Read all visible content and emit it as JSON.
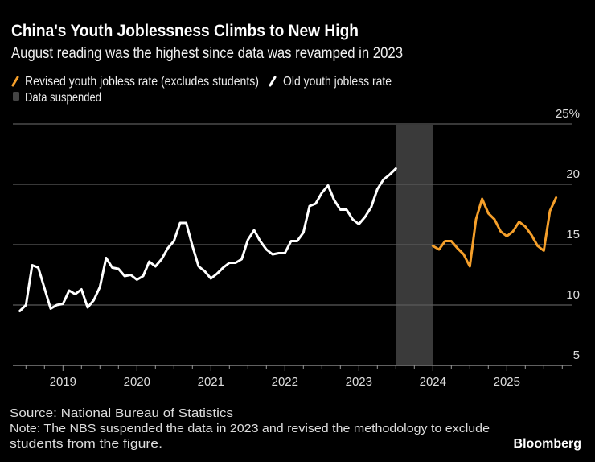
{
  "chart_data": {
    "type": "line",
    "title": "China's Youth Joblessness Climbs to New High",
    "subtitle": "August reading was the highest since data was revamped in 2023",
    "ylabel": "",
    "xlabel": "",
    "ylim": [
      5,
      25
    ],
    "y_ticks": [
      "25%",
      "20",
      "15",
      "10",
      "5"
    ],
    "y_tick_values": [
      25,
      20,
      15,
      10,
      5
    ],
    "x_ticks": [
      "2019",
      "2020",
      "2021",
      "2022",
      "2023",
      "2024",
      "2025"
    ],
    "grid": true,
    "legend_placement": "top-left",
    "legend": {
      "revised": "Revised youth jobless rate (excludes students)",
      "old": "Old youth jobless rate",
      "suspended": "Data suspended"
    },
    "suspended_period": [
      "2023-07",
      "2023-12"
    ],
    "series": [
      {
        "name": "Old youth jobless rate",
        "color": "#ffffff",
        "dates": [
          "2018-05",
          "2018-06",
          "2018-07",
          "2018-08",
          "2018-09",
          "2018-10",
          "2018-11",
          "2018-12",
          "2019-01",
          "2019-02",
          "2019-03",
          "2019-04",
          "2019-05",
          "2019-06",
          "2019-07",
          "2019-08",
          "2019-09",
          "2019-10",
          "2019-11",
          "2019-12",
          "2020-01",
          "2020-02",
          "2020-03",
          "2020-04",
          "2020-05",
          "2020-06",
          "2020-07",
          "2020-08",
          "2020-09",
          "2020-10",
          "2020-11",
          "2020-12",
          "2021-01",
          "2021-02",
          "2021-03",
          "2021-04",
          "2021-05",
          "2021-06",
          "2021-07",
          "2021-08",
          "2021-09",
          "2021-10",
          "2021-11",
          "2021-12",
          "2022-01",
          "2022-02",
          "2022-03",
          "2022-04",
          "2022-05",
          "2022-06",
          "2022-07",
          "2022-08",
          "2022-09",
          "2022-10",
          "2022-11",
          "2022-12",
          "2023-01",
          "2023-02",
          "2023-03",
          "2023-04",
          "2023-05",
          "2023-06"
        ],
        "values": [
          9.5,
          10.0,
          13.3,
          13.1,
          11.4,
          9.7,
          10.0,
          10.1,
          11.2,
          10.9,
          11.3,
          9.8,
          10.4,
          11.5,
          13.9,
          13.1,
          13.0,
          12.4,
          12.5,
          12.1,
          12.4,
          13.6,
          13.2,
          13.8,
          14.7,
          15.3,
          16.8,
          16.8,
          14.9,
          13.2,
          12.8,
          12.2,
          12.6,
          13.1,
          13.5,
          13.5,
          13.8,
          15.4,
          16.2,
          15.3,
          14.6,
          14.2,
          14.3,
          14.3,
          15.3,
          15.3,
          16.0,
          18.2,
          18.4,
          19.3,
          19.9,
          18.7,
          17.9,
          17.9,
          17.1,
          16.7,
          17.3,
          18.1,
          19.6,
          20.4,
          20.8,
          21.3
        ]
      },
      {
        "name": "Revised youth jobless rate (excludes students)",
        "color": "#f59f2a",
        "dates": [
          "2023-12",
          "2024-01",
          "2024-02",
          "2024-03",
          "2024-04",
          "2024-05",
          "2024-06",
          "2024-07",
          "2024-08",
          "2024-09",
          "2024-10",
          "2024-11",
          "2024-12",
          "2025-01",
          "2025-02",
          "2025-03",
          "2025-04",
          "2025-05",
          "2025-06",
          "2025-07",
          "2025-08"
        ],
        "values": [
          14.9,
          14.6,
          15.3,
          15.3,
          14.7,
          14.2,
          13.2,
          17.1,
          18.8,
          17.6,
          17.1,
          16.1,
          15.7,
          16.1,
          16.9,
          16.5,
          15.8,
          14.9,
          14.5,
          17.8,
          18.9
        ]
      }
    ],
    "suspended_color": "#3a3a3a",
    "source": "Source: National Bureau of Statistics",
    "note_line1": "Note: The NBS suspended the data in 2023 and revised the methodology to exclude",
    "note_line2": "students from the figure.",
    "brand": "Bloomberg"
  }
}
